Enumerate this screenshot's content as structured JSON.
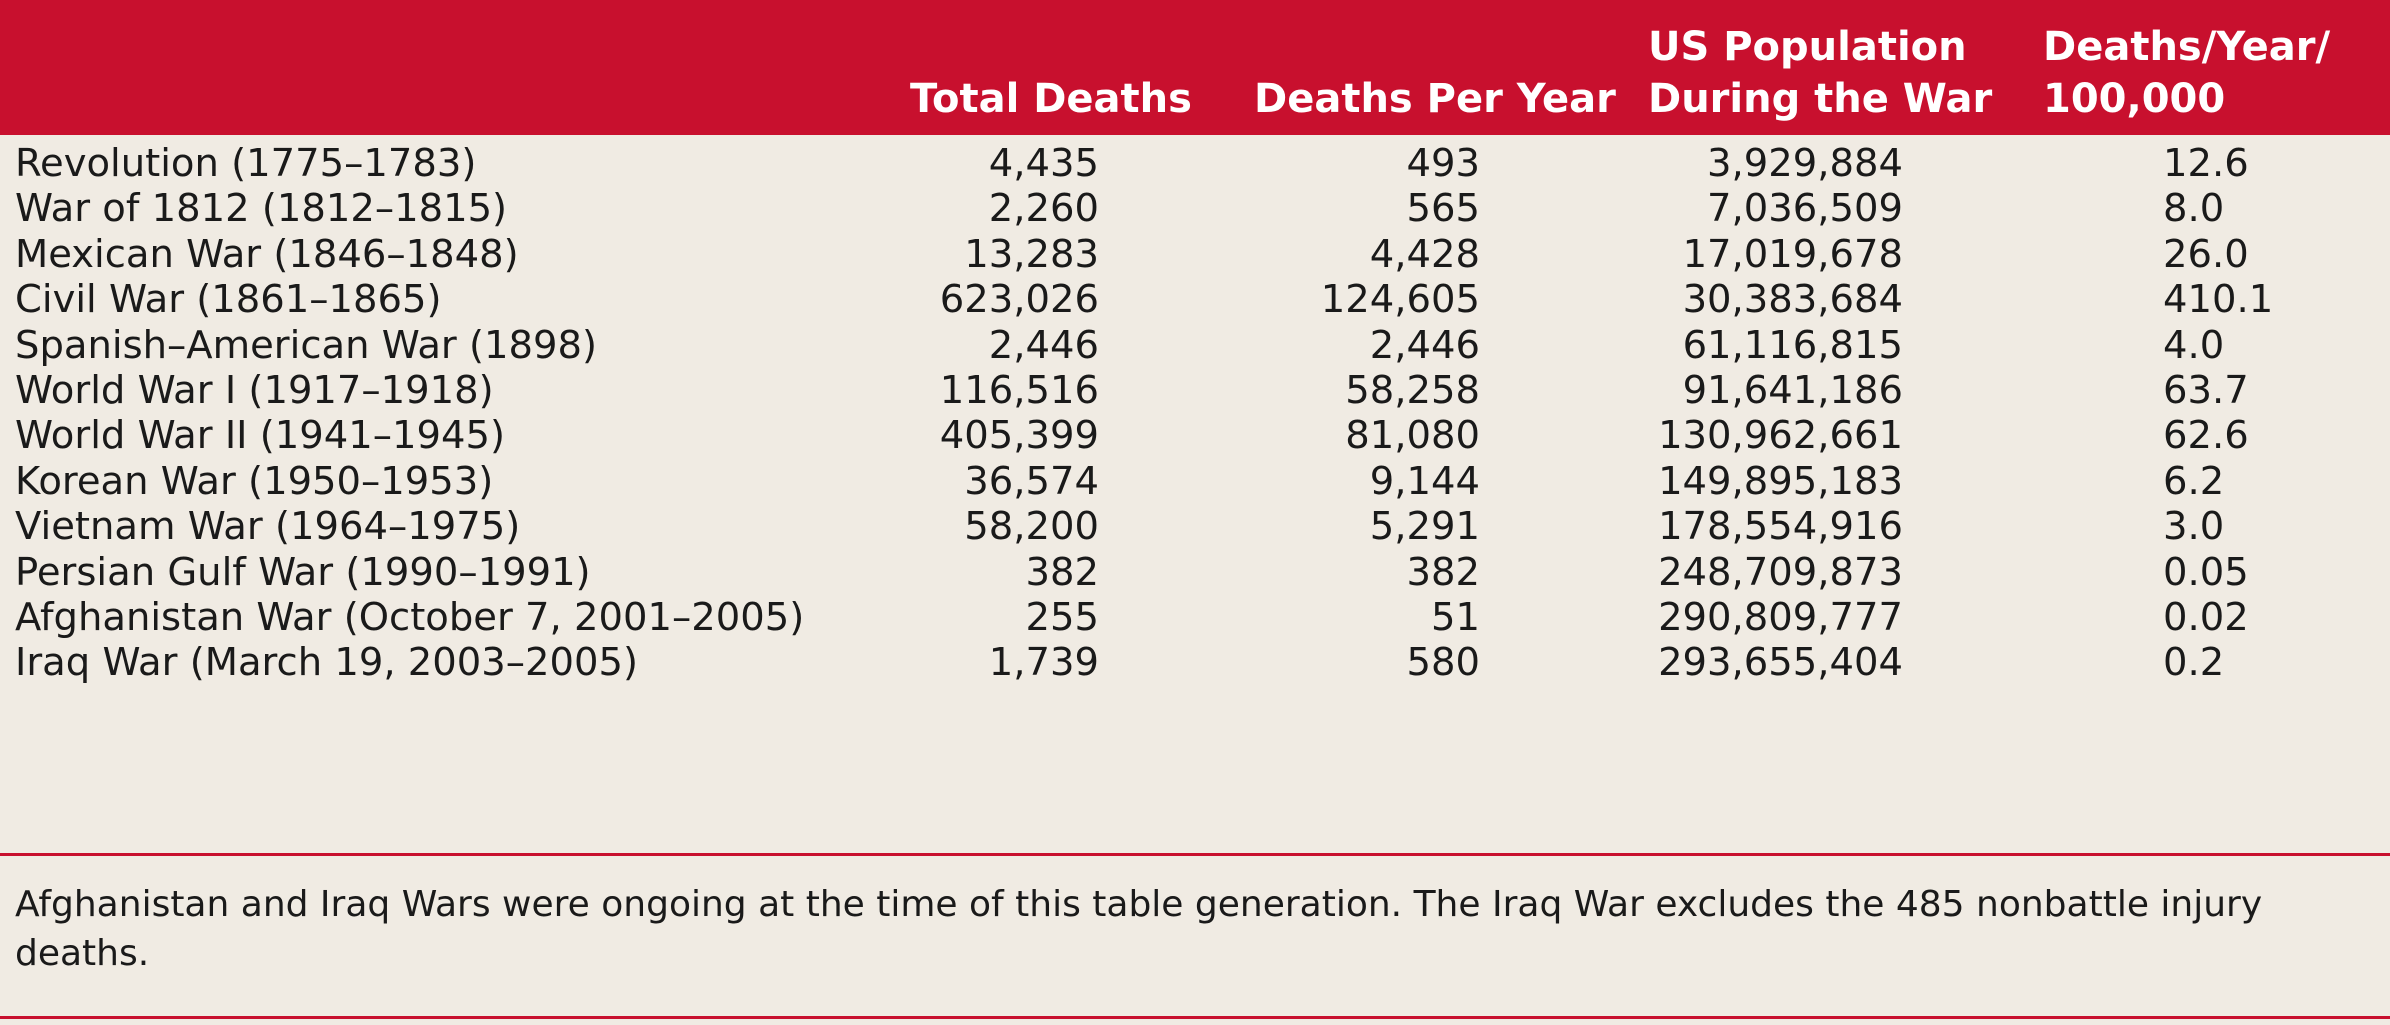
{
  "table": {
    "headers": {
      "total_deaths": "Total Deaths",
      "deaths_per_year": "Deaths Per Year",
      "us_population_line1": "US Population",
      "us_population_line2": "During the War",
      "rate_line1": "Deaths/Year/",
      "rate_line2": "100,000"
    },
    "rows": [
      {
        "war": "Revolution (1775–1783)",
        "total": "4,435",
        "per_year": "493",
        "population": "3,929,884",
        "rate": "12.6"
      },
      {
        "war": "War of 1812 (1812–1815)",
        "total": "2,260",
        "per_year": "565",
        "population": "7,036,509",
        "rate": "8.0"
      },
      {
        "war": "Mexican War (1846–1848)",
        "total": "13,283",
        "per_year": "4,428",
        "population": "17,019,678",
        "rate": "26.0"
      },
      {
        "war": "Civil War (1861–1865)",
        "total": "623,026",
        "per_year": "124,605",
        "population": "30,383,684",
        "rate": "410.1"
      },
      {
        "war": "Spanish–American War (1898)",
        "total": "2,446",
        "per_year": "2,446",
        "population": "61,116,815",
        "rate": "4.0"
      },
      {
        "war": "World War I (1917–1918)",
        "total": "116,516",
        "per_year": "58,258",
        "population": "91,641,186",
        "rate": "63.7"
      },
      {
        "war": "World War II (1941–1945)",
        "total": "405,399",
        "per_year": "81,080",
        "population": "130,962,661",
        "rate": "62.6"
      },
      {
        "war": "Korean War (1950–1953)",
        "total": "36,574",
        "per_year": "9,144",
        "population": "149,895,183",
        "rate": "6.2"
      },
      {
        "war": "Vietnam War (1964–1975)",
        "total": "58,200",
        "per_year": "5,291",
        "population": "178,554,916",
        "rate": "3.0"
      },
      {
        "war": "Persian Gulf War (1990–1991)",
        "total": "382",
        "per_year": "382",
        "population": "248,709,873",
        "rate": "0.05"
      },
      {
        "war": "Afghanistan War (October 7, 2001–2005)",
        "total": "255",
        "per_year": "51",
        "population": "290,809,777",
        "rate": "0.02"
      },
      {
        "war": "Iraq War (March 19, 2003–2005)",
        "total": "1,739",
        "per_year": "580",
        "population": "293,655,404",
        "rate": "0.2"
      }
    ]
  },
  "footnote": "Afghanistan and Iraq Wars were ongoing at the time of this table generation. The Iraq War excludes the 485 nonbattle injury deaths.",
  "colors": {
    "header_background": "#c8102e",
    "header_text": "#ffffff",
    "page_background": "#f0ebe3",
    "rule": "#c8102e"
  }
}
